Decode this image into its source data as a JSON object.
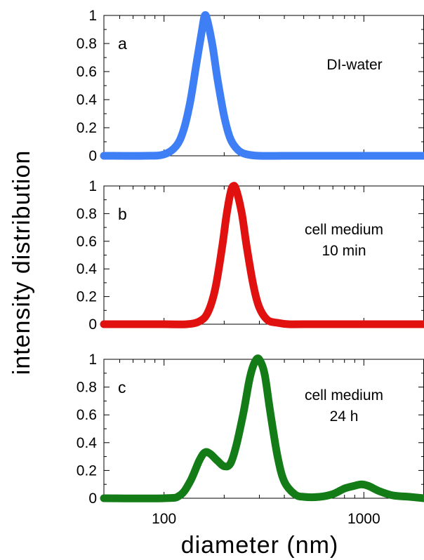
{
  "figure": {
    "ylabel": "intensity distribution",
    "xlabel": "diameter (nm)",
    "x_scale": "log",
    "xlim": [
      50,
      2000
    ],
    "x_ticks": [
      100,
      1000
    ],
    "x_tick_labels": [
      "100",
      "1000"
    ]
  },
  "chart_data": [
    {
      "type": "line",
      "panel_label": "a",
      "annotation": [
        "DI-water"
      ],
      "ylim": [
        0,
        1
      ],
      "y_ticks": [
        0,
        0.2,
        0.4,
        0.6,
        0.8,
        1
      ],
      "y_tick_labels": [
        "0",
        "0.2",
        "0.4",
        "0.6",
        "0.8",
        "1"
      ],
      "series": [
        {
          "color": "#3f7ff5",
          "x": [
            50,
            80,
            100,
            115,
            125,
            135,
            145,
            155,
            160,
            165,
            175,
            185,
            200,
            215,
            235,
            260,
            300,
            400,
            600,
            1000,
            2000
          ],
          "y": [
            0,
            0,
            0.01,
            0.07,
            0.18,
            0.38,
            0.65,
            0.9,
            1.0,
            0.96,
            0.78,
            0.55,
            0.28,
            0.12,
            0.04,
            0.01,
            0,
            0,
            0,
            0,
            0
          ]
        }
      ]
    },
    {
      "type": "line",
      "panel_label": "b",
      "annotation": [
        "cell medium",
        "10 min"
      ],
      "ylim": [
        0,
        1
      ],
      "y_ticks": [
        0,
        0.2,
        0.4,
        0.6,
        0.8,
        1
      ],
      "y_tick_labels": [
        "0",
        "0.2",
        "0.4",
        "0.6",
        "0.8",
        "1"
      ],
      "series": [
        {
          "color": "#e0110f",
          "x": [
            50,
            100,
            130,
            150,
            165,
            180,
            195,
            205,
            215,
            222,
            230,
            245,
            260,
            280,
            300,
            330,
            370,
            420,
            500,
            1000,
            2000
          ],
          "y": [
            0,
            0,
            0,
            0.02,
            0.08,
            0.25,
            0.55,
            0.78,
            0.95,
            1.0,
            0.97,
            0.8,
            0.55,
            0.28,
            0.12,
            0.03,
            0.01,
            0,
            0,
            0,
            0
          ]
        }
      ]
    },
    {
      "type": "line",
      "panel_label": "c",
      "annotation": [
        "cell medium",
        "24 h"
      ],
      "ylim": [
        0,
        1
      ],
      "y_ticks": [
        0,
        0.2,
        0.4,
        0.6,
        0.8,
        1
      ],
      "y_tick_labels": [
        "0",
        "0.2",
        "0.4",
        "0.6",
        "0.8",
        "1"
      ],
      "series": [
        {
          "color": "#137c17",
          "x": [
            50,
            100,
            120,
            135,
            150,
            160,
            170,
            185,
            200,
            215,
            230,
            250,
            270,
            290,
            305,
            320,
            340,
            370,
            400,
            450,
            500,
            600,
            700,
            800,
            900,
            970,
            1050,
            1200,
            1400,
            1700,
            2000
          ],
          "y": [
            0,
            0,
            0.02,
            0.12,
            0.27,
            0.33,
            0.32,
            0.27,
            0.23,
            0.25,
            0.38,
            0.62,
            0.88,
            1.0,
            0.98,
            0.88,
            0.62,
            0.3,
            0.12,
            0.03,
            0.01,
            0.01,
            0.03,
            0.07,
            0.09,
            0.1,
            0.09,
            0.05,
            0.02,
            0.01,
            0
          ]
        }
      ]
    }
  ]
}
